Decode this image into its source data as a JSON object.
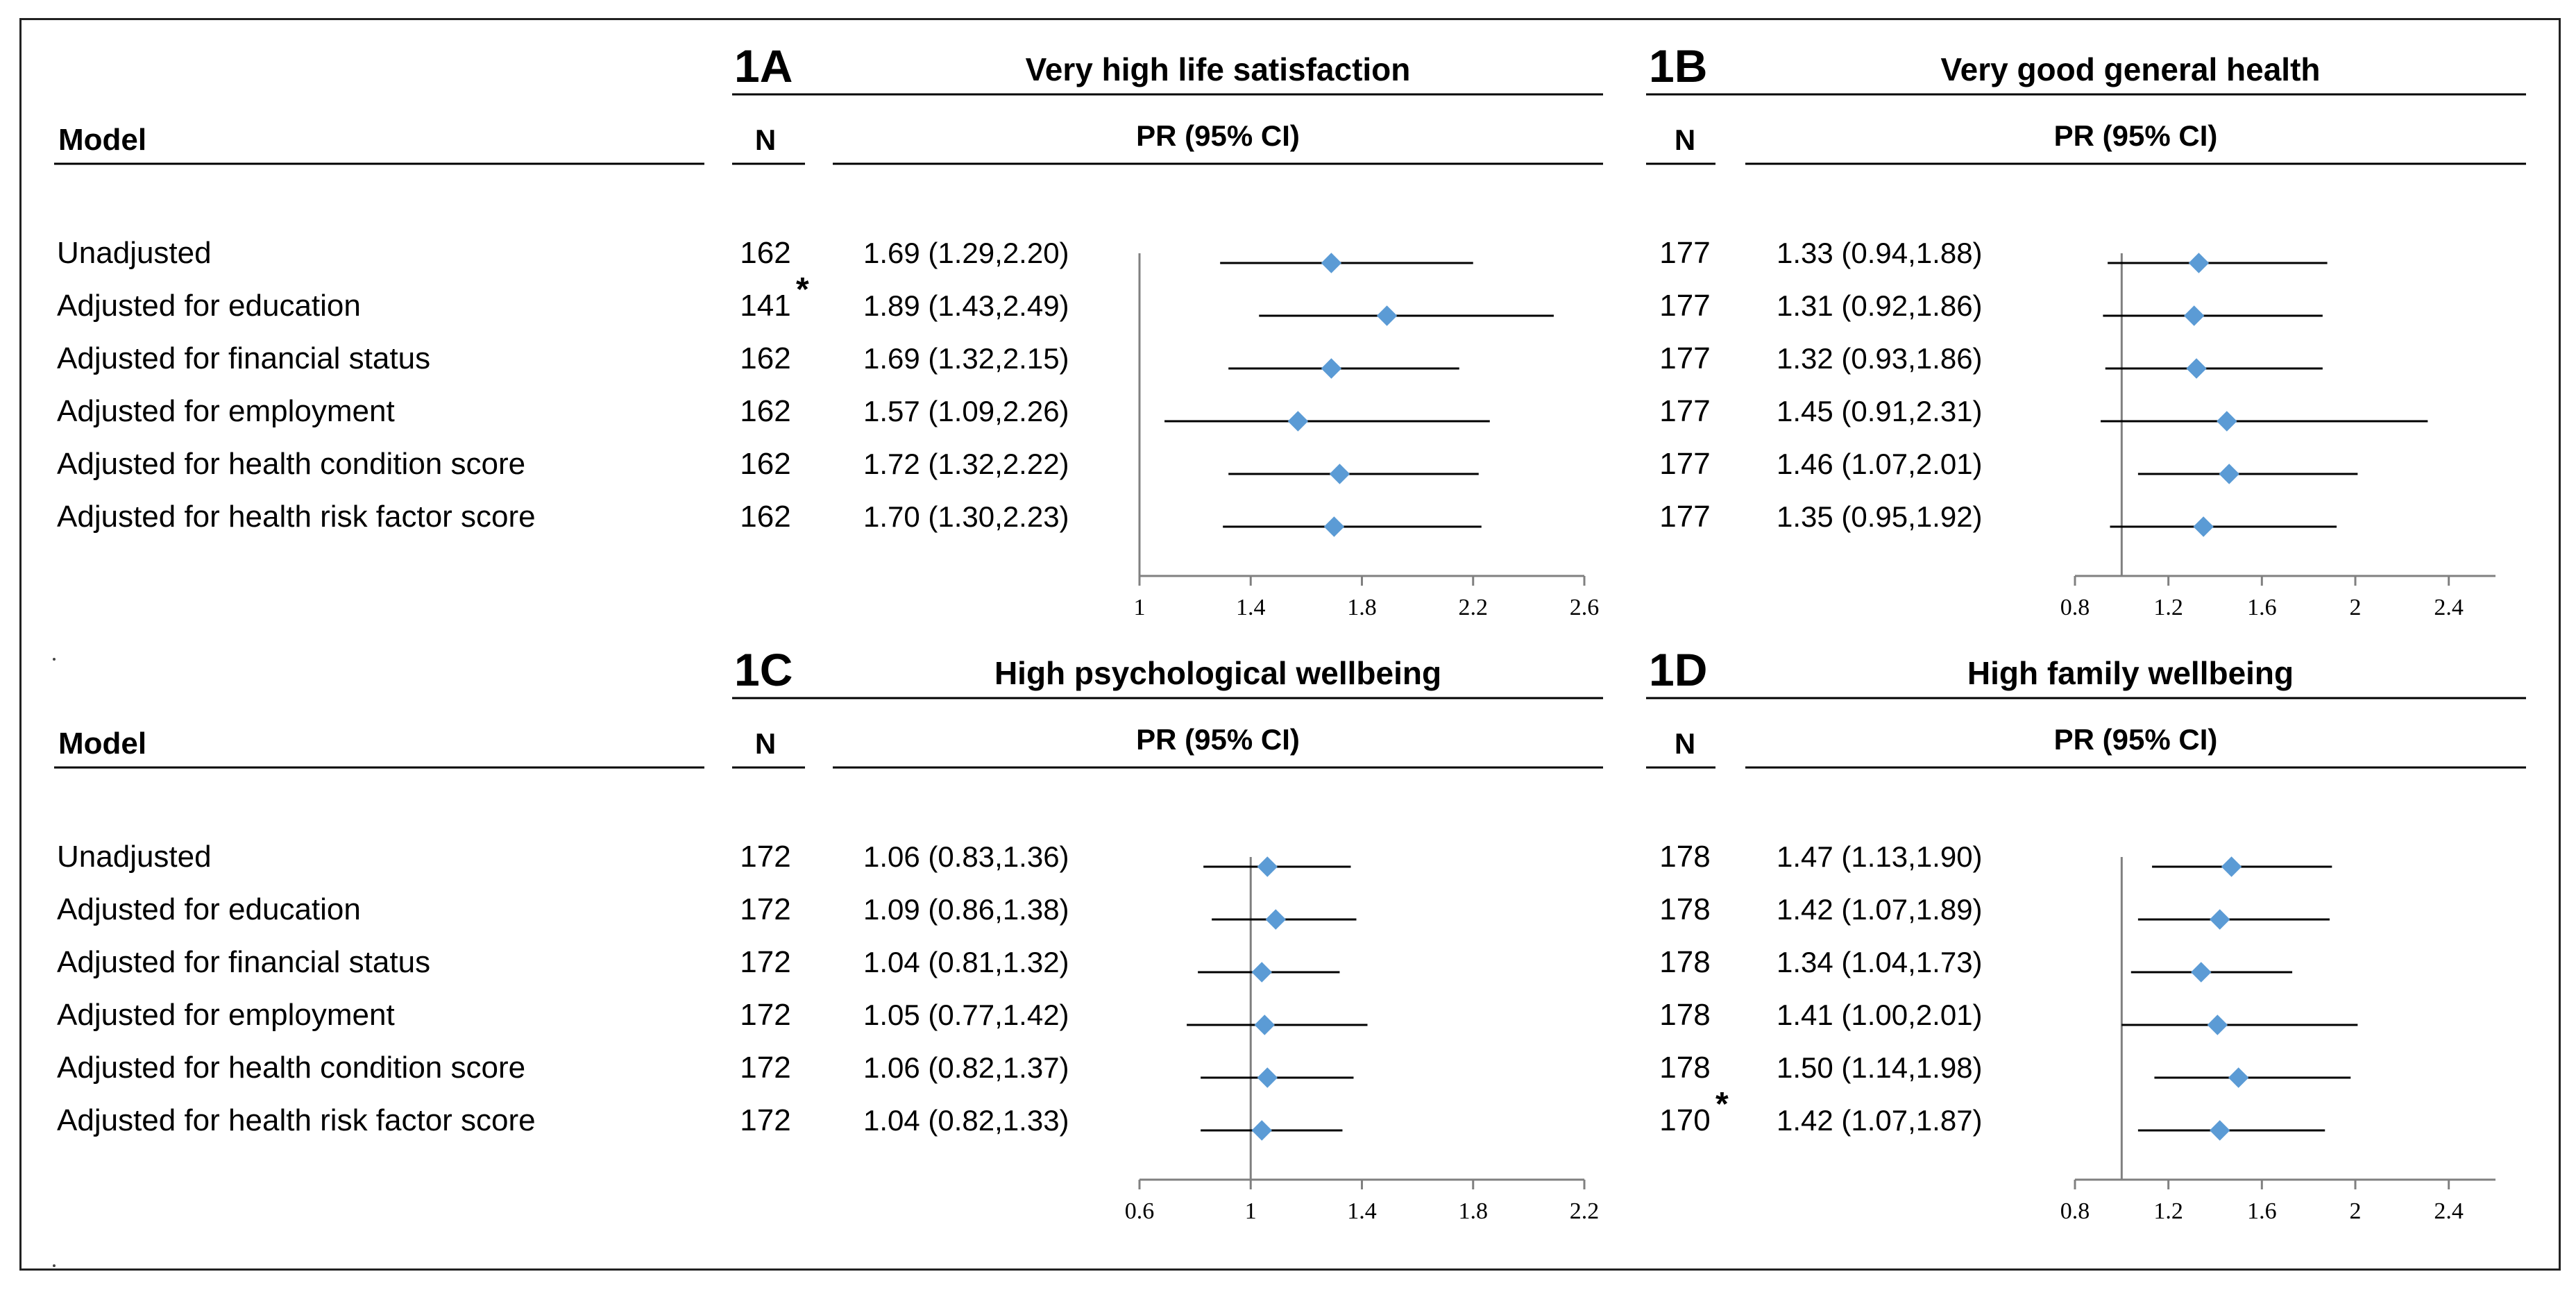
{
  "model_header": "Model",
  "n_header": "N",
  "pr_header": "PR (95% CI)",
  "marker_color": "#5B9BD5",
  "line_color": "#000000",
  "axis_color": "#808080",
  "row_labels": [
    "Unadjusted",
    "Adjusted for education",
    "Adjusted for financial status",
    "Adjusted for employment",
    "Adjusted for health condition score",
    "Adjusted for health risk factor score"
  ],
  "chart_data": [
    {
      "type": "forest",
      "panel": "1A",
      "title": "Very high life satisfaction",
      "n": [
        "162",
        "141",
        "162",
        "162",
        "162",
        "162"
      ],
      "n_marks": [
        "",
        "*",
        "",
        "",
        "",
        ""
      ],
      "ci_text": [
        "1.69 (1.29,2.20)",
        "1.89 (1.43,2.49)",
        "1.69 (1.32,2.15)",
        "1.57 (1.09,2.26)",
        "1.72 (1.32,2.22)",
        "1.70 (1.30,2.23)"
      ],
      "pr": [
        1.69,
        1.89,
        1.69,
        1.57,
        1.72,
        1.7
      ],
      "lo": [
        1.29,
        1.43,
        1.32,
        1.09,
        1.32,
        1.3
      ],
      "hi": [
        2.2,
        2.49,
        2.15,
        2.26,
        2.22,
        2.23
      ],
      "xlim": [
        1,
        2.6
      ],
      "ticks": [
        1,
        1.4,
        1.8,
        2.2,
        2.6
      ],
      "tick_labels": [
        "1",
        "1.4",
        "1.8",
        "2.2",
        "2.6"
      ],
      "ref": 1
    },
    {
      "type": "forest",
      "panel": "1B",
      "title": "Very good general health",
      "n": [
        "177",
        "177",
        "177",
        "177",
        "177",
        "177"
      ],
      "n_marks": [
        "",
        "",
        "",
        "",
        "",
        ""
      ],
      "ci_text": [
        "1.33 (0.94,1.88)",
        "1.31 (0.92,1.86)",
        "1.32 (0.93,1.86)",
        "1.45 (0.91,2.31)",
        "1.46 (1.07,2.01)",
        "1.35 (0.95,1.92)"
      ],
      "pr": [
        1.33,
        1.31,
        1.32,
        1.45,
        1.46,
        1.35
      ],
      "lo": [
        0.94,
        0.92,
        0.93,
        0.91,
        1.07,
        0.95
      ],
      "hi": [
        1.88,
        1.86,
        1.86,
        2.31,
        2.01,
        1.92
      ],
      "xlim": [
        0.8,
        2.6
      ],
      "ticks": [
        0.8,
        1.2,
        1.6,
        2,
        2.4
      ],
      "tick_labels": [
        "0.8",
        "1.2",
        "1.6",
        "2",
        "2.4"
      ],
      "ref": 1
    },
    {
      "type": "forest",
      "panel": "1C",
      "title": "High psychological wellbeing",
      "n": [
        "172",
        "172",
        "172",
        "172",
        "172",
        "172"
      ],
      "n_marks": [
        "",
        "",
        "",
        "",
        "",
        ""
      ],
      "ci_text": [
        "1.06 (0.83,1.36)",
        "1.09 (0.86,1.38)",
        "1.04 (0.81,1.32)",
        "1.05 (0.77,1.42)",
        "1.06 (0.82,1.37)",
        "1.04 (0.82,1.33)"
      ],
      "pr": [
        1.06,
        1.09,
        1.04,
        1.05,
        1.06,
        1.04
      ],
      "lo": [
        0.83,
        0.86,
        0.81,
        0.77,
        0.82,
        0.82
      ],
      "hi": [
        1.36,
        1.38,
        1.32,
        1.42,
        1.37,
        1.33
      ],
      "xlim": [
        0.6,
        2.2
      ],
      "ticks": [
        0.6,
        1,
        1.4,
        1.8,
        2.2
      ],
      "tick_labels": [
        "0.6",
        "1",
        "1.4",
        "1.8",
        "2.2"
      ],
      "ref": 1
    },
    {
      "type": "forest",
      "panel": "1D",
      "title": "High family wellbeing",
      "n": [
        "178",
        "178",
        "178",
        "178",
        "178",
        "170"
      ],
      "n_marks": [
        "",
        "",
        "",
        "",
        "",
        "*"
      ],
      "ci_text": [
        "1.47 (1.13,1.90)",
        "1.42 (1.07,1.89)",
        "1.34 (1.04,1.73)",
        "1.41 (1.00,2.01)",
        "1.50 (1.14,1.98)",
        "1.42 (1.07,1.87)"
      ],
      "pr": [
        1.47,
        1.42,
        1.34,
        1.41,
        1.5,
        1.42
      ],
      "lo": [
        1.13,
        1.07,
        1.04,
        1.0,
        1.14,
        1.07
      ],
      "hi": [
        1.9,
        1.89,
        1.73,
        2.01,
        1.98,
        1.87
      ],
      "xlim": [
        0.8,
        2.6
      ],
      "ticks": [
        0.8,
        1.2,
        1.6,
        2,
        2.4
      ],
      "tick_labels": [
        "0.8",
        "1.2",
        "1.6",
        "2",
        "2.4"
      ],
      "ref": 1
    }
  ]
}
